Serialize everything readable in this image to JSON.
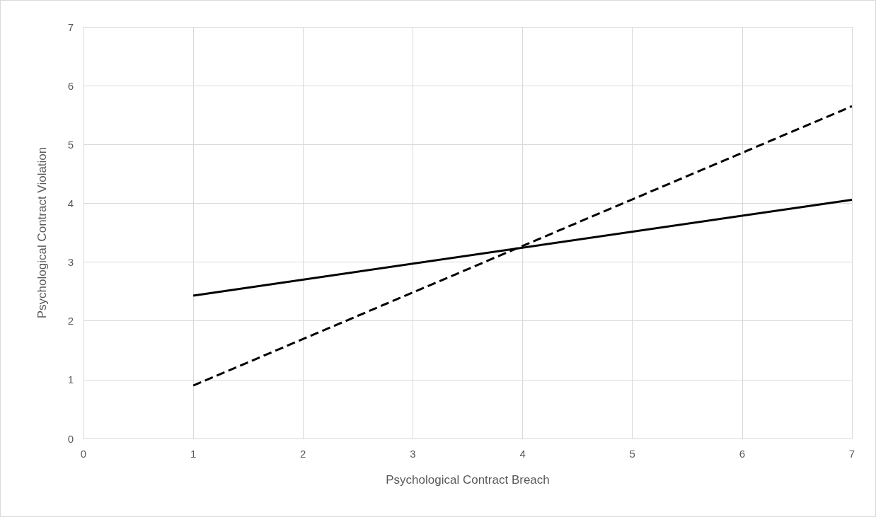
{
  "chart_data": {
    "type": "line",
    "xlabel": "Psychological Contract Breach",
    "ylabel": "Psychological Contract Violation",
    "x": [
      1,
      7
    ],
    "series": [
      {
        "color": "#000000",
        "values": [
          2.43,
          4.06
        ],
        "line_style": "solid"
      },
      {
        "color": "#000000",
        "values": [
          0.9,
          5.65
        ],
        "line_style": "dashed"
      }
    ],
    "xlim": [
      0,
      7
    ],
    "xticks": [
      0,
      1,
      2,
      3,
      4,
      5,
      6,
      7
    ],
    "ylim": [
      0,
      7
    ],
    "yticks": [
      0,
      1,
      2,
      3,
      4,
      5,
      6,
      7
    ],
    "grid": true,
    "marker": "none"
  }
}
